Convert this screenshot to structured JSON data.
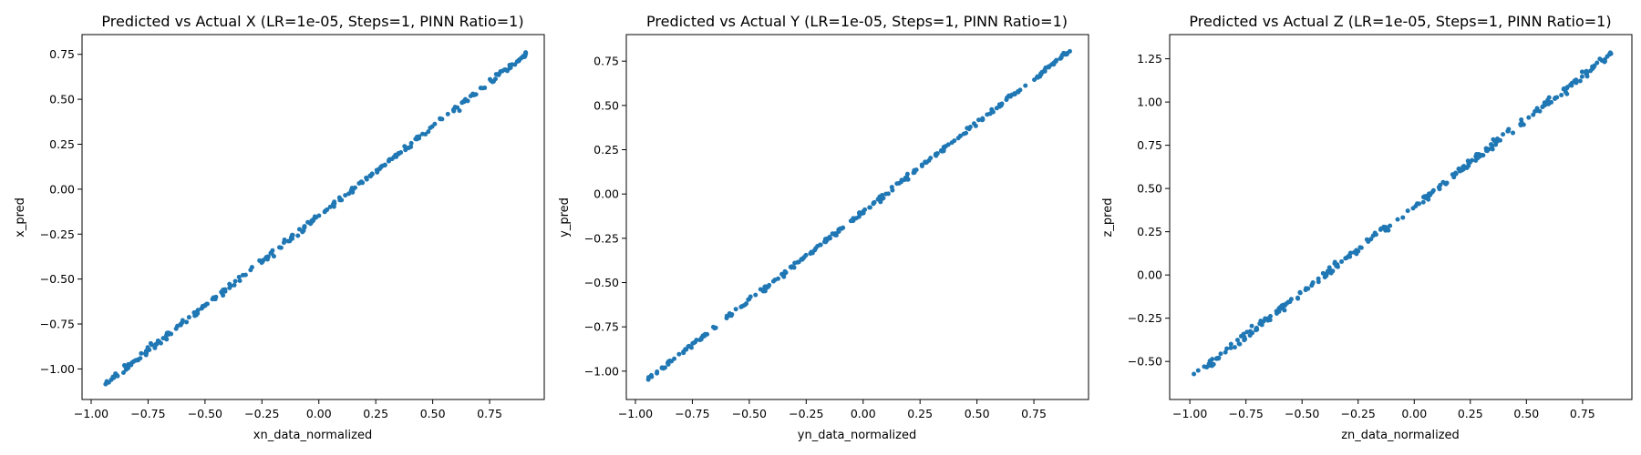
{
  "figure": {
    "background": "#ffffff",
    "marker_color": "#1f77b4"
  },
  "chart_data": [
    {
      "type": "scatter",
      "title": "Predicted vs Actual X (LR=1e-05, Steps=1, PINN Ratio=1)",
      "xlabel": "xn_data_normalized",
      "ylabel": "x_pred",
      "xlim": [
        -1.04,
        0.99
      ],
      "ylim": [
        -1.17,
        0.86
      ],
      "xticks": [
        -1.0,
        -0.75,
        -0.5,
        -0.25,
        0.0,
        0.25,
        0.5,
        0.75
      ],
      "xtick_labels": [
        "−1.00",
        "−0.75",
        "−0.50",
        "−0.25",
        "0.00",
        "0.25",
        "0.50",
        "0.75"
      ],
      "yticks": [
        -1.0,
        -0.75,
        -0.5,
        -0.25,
        0.0,
        0.25,
        0.5,
        0.75
      ],
      "ytick_labels": [
        "−1.00",
        "−0.75",
        "−0.50",
        "−0.25",
        "0.00",
        "0.25",
        "0.50",
        "0.75"
      ],
      "x_range": [
        -0.94,
        0.91
      ],
      "fit": {
        "slope": 0.995,
        "intercept": -0.15
      },
      "noise": 0.008,
      "n_points": 260,
      "grid": false,
      "legend": "none"
    },
    {
      "type": "scatter",
      "title": "Predicted vs Actual Y (LR=1e-05, Steps=1, PINN Ratio=1)",
      "xlabel": "yn_data_normalized",
      "ylabel": "y_pred",
      "xlim": [
        -1.04,
        0.99
      ],
      "ylim": [
        -1.16,
        0.9
      ],
      "xticks": [
        -1.0,
        -0.75,
        -0.5,
        -0.25,
        0.0,
        0.25,
        0.5,
        0.75
      ],
      "xtick_labels": [
        "−1.00",
        "−0.75",
        "−0.50",
        "−0.25",
        "0.00",
        "0.25",
        "0.50",
        "0.75"
      ],
      "yticks": [
        -1.0,
        -0.75,
        -0.5,
        -0.25,
        0.0,
        0.25,
        0.5,
        0.75
      ],
      "ytick_labels": [
        "−1.00",
        "−0.75",
        "−0.50",
        "−0.25",
        "0.00",
        "0.25",
        "0.50",
        "0.75"
      ],
      "x_range": [
        -0.95,
        0.91
      ],
      "fit": {
        "slope": 1.0,
        "intercept": -0.1
      },
      "noise": 0.007,
      "n_points": 260,
      "grid": false,
      "legend": "none"
    },
    {
      "type": "scatter",
      "title": "Predicted vs Actual Z (LR=1e-05, Steps=1, PINN Ratio=1)",
      "xlabel": "zn_data_normalized",
      "ylabel": "z_pred",
      "xlim": [
        -1.09,
        0.97
      ],
      "ylim": [
        -0.72,
        1.39
      ],
      "xticks": [
        -1.0,
        -0.75,
        -0.5,
        -0.25,
        0.0,
        0.25,
        0.5,
        0.75
      ],
      "xtick_labels": [
        "−1.00",
        "−0.75",
        "−0.50",
        "−0.25",
        "0.00",
        "0.25",
        "0.50",
        "0.75"
      ],
      "yticks": [
        -0.5,
        -0.25,
        0.0,
        0.25,
        0.5,
        0.75,
        1.0,
        1.25
      ],
      "ytick_labels": [
        "−0.50",
        "−0.25",
        "0.00",
        "0.25",
        "0.50",
        "0.75",
        "1.00",
        "1.25"
      ],
      "x_range": [
        -0.99,
        0.88
      ],
      "fit": {
        "slope": 1.0,
        "intercept": 0.4
      },
      "noise": 0.012,
      "n_points": 260,
      "grid": false,
      "legend": "none"
    }
  ]
}
